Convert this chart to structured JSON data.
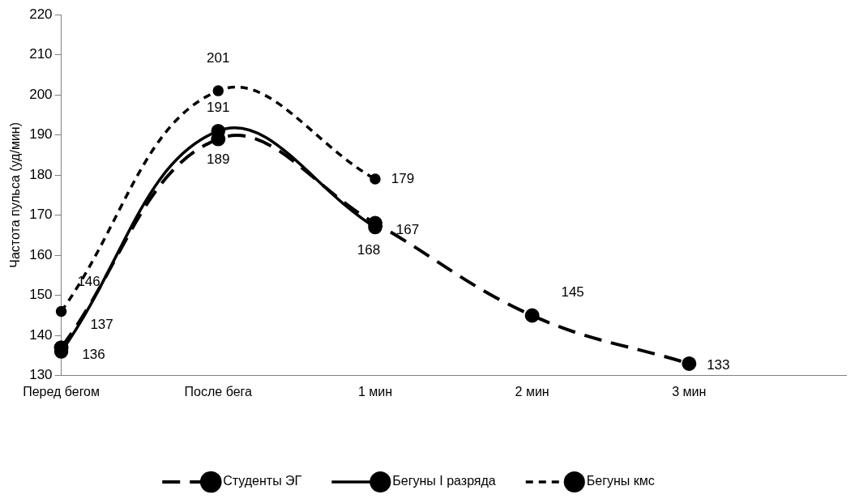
{
  "chart_data": {
    "type": "line",
    "ylabel": "Частота пульса (уд/мин)",
    "categories": [
      "Перед бегом",
      "После бега",
      "1 мин",
      "2 мин",
      "3 мин",
      null
    ],
    "ylim": [
      130,
      220
    ],
    "yticks": [
      130,
      140,
      150,
      160,
      170,
      180,
      190,
      200,
      210,
      220
    ],
    "grid": false,
    "legend": "bottom",
    "marker": "circle",
    "data_labels": true,
    "series": [
      {
        "name": "Студенты ЭГ",
        "color": "#000000",
        "line_style": "dashed",
        "values": [
          137,
          189,
          168,
          145,
          133,
          null
        ]
      },
      {
        "name": "Бегуны I разряда",
        "color": "#000000",
        "line_style": "solid",
        "values": [
          136,
          191,
          167,
          null,
          null,
          null
        ]
      },
      {
        "name": "Бегуны кмс",
        "color": "#000000",
        "line_style": "dotted",
        "values": [
          146,
          201,
          179,
          null,
          null,
          null
        ]
      }
    ]
  }
}
